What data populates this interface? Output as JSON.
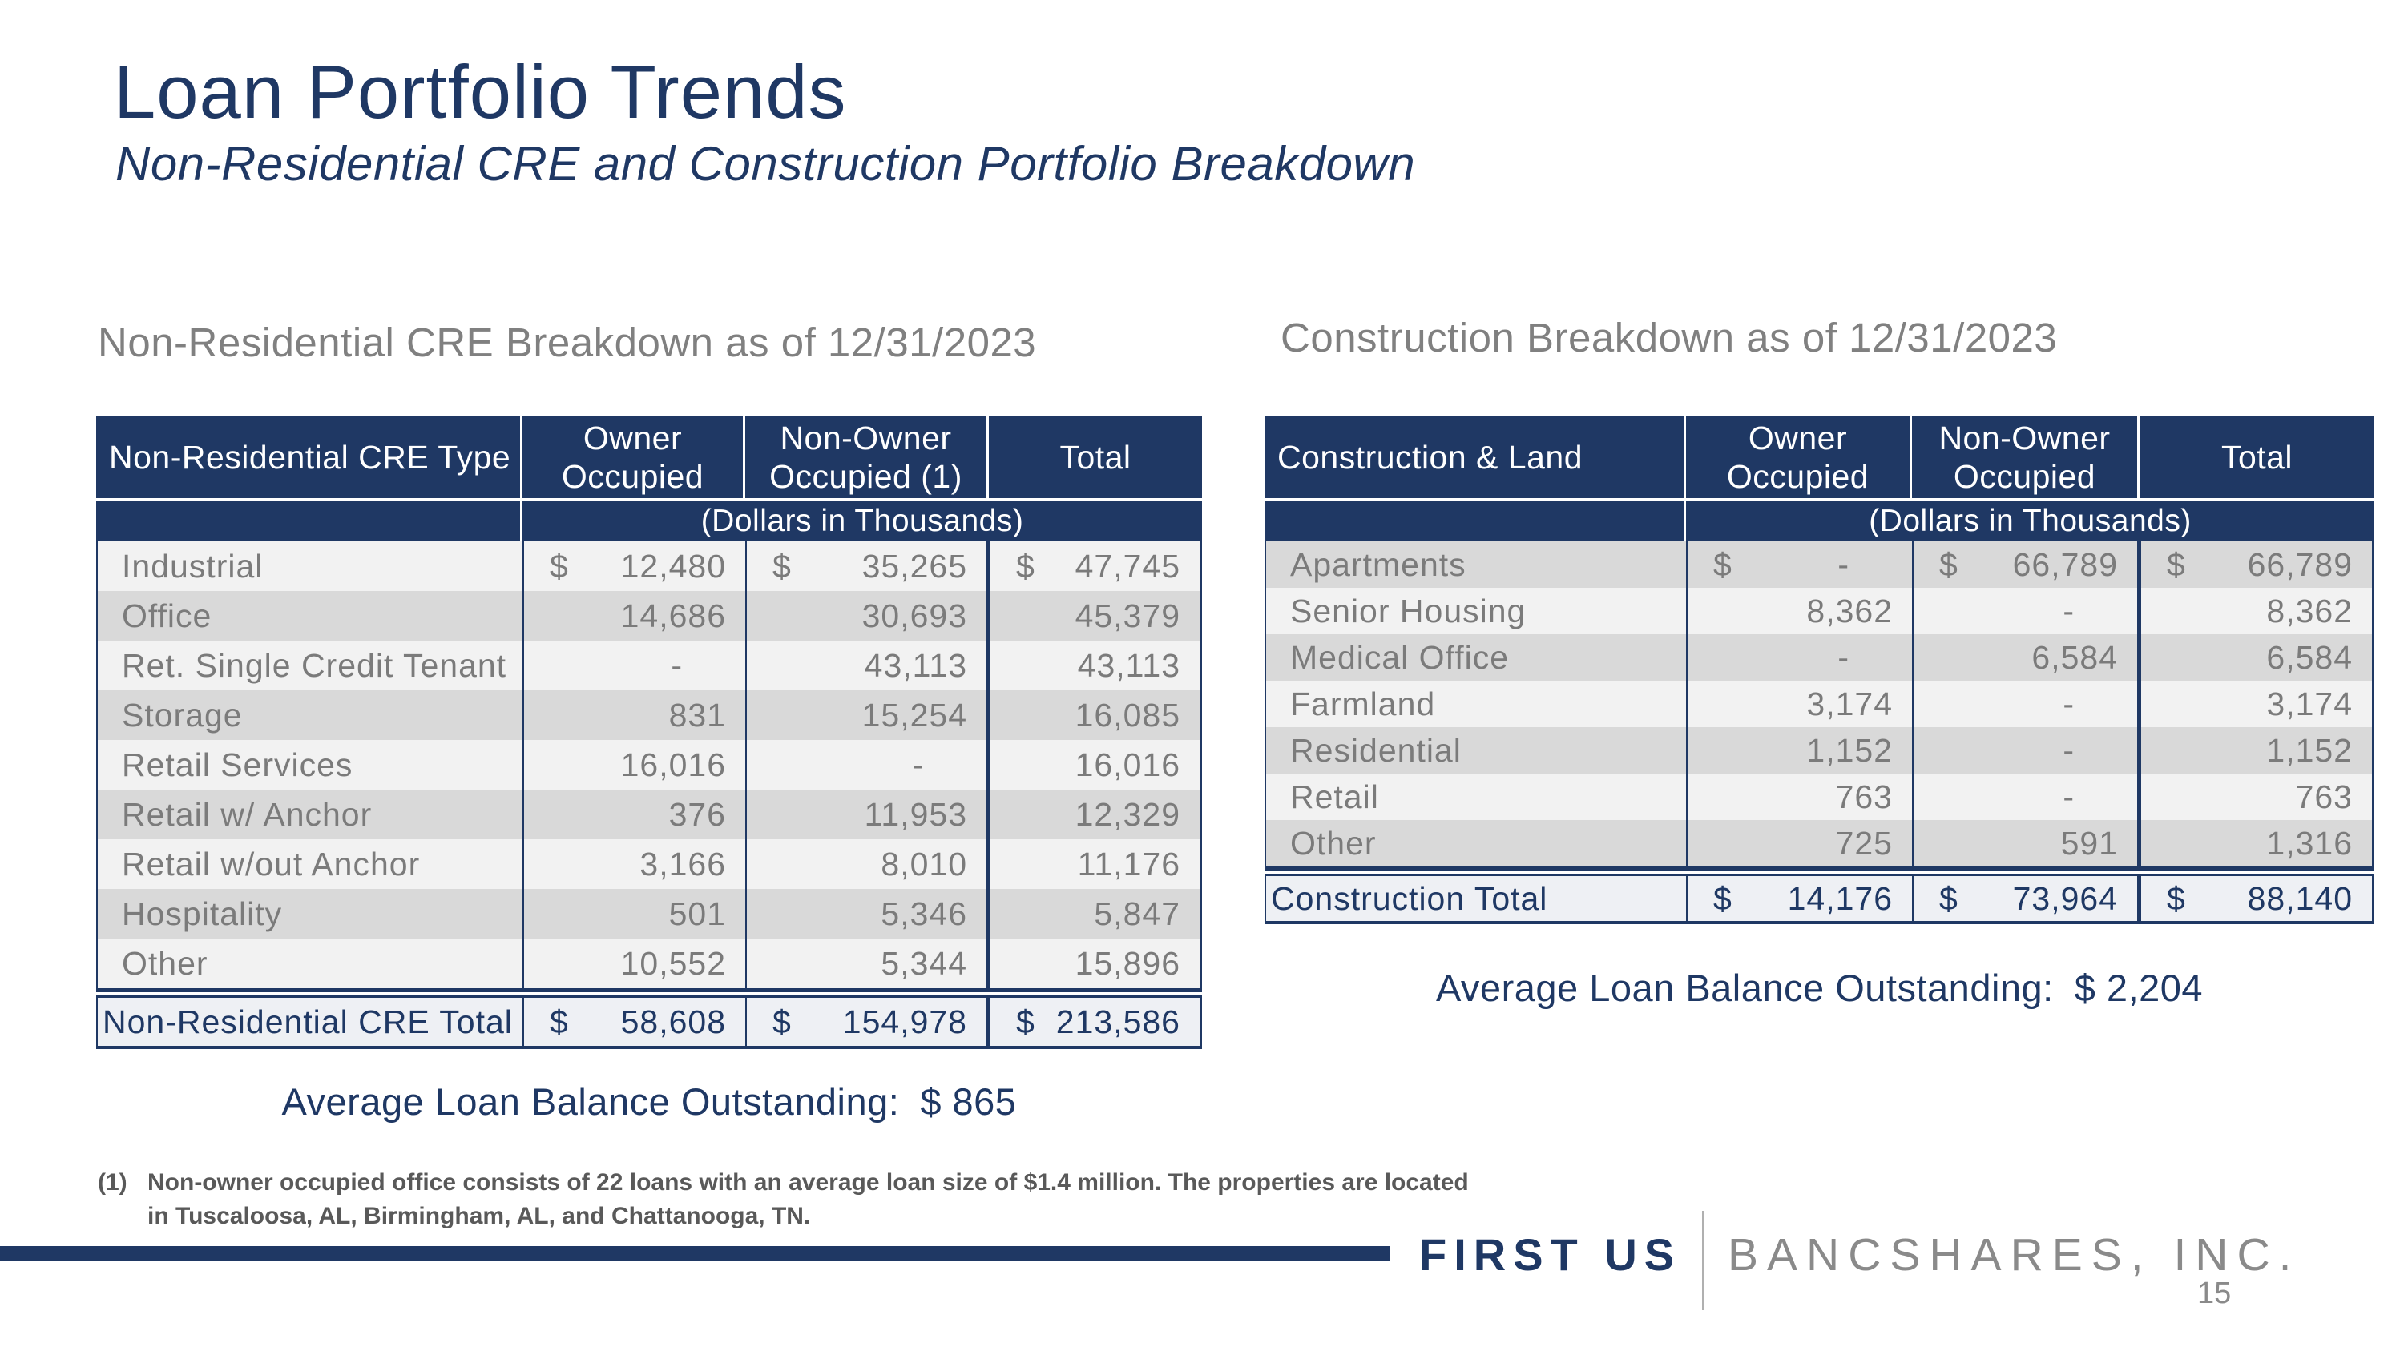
{
  "slide": {
    "title": "Loan Portfolio Trends",
    "subtitle": "Non-Residential CRE and Construction Portfolio Breakdown",
    "page_number": "15"
  },
  "colors": {
    "navy": "#1f3864",
    "row_light": "#f2f2f2",
    "row_dark": "#d9d9d9",
    "body_text": "#7b7b7b",
    "section_title_gray": "#808080",
    "footnote_gray": "#595959",
    "logo_gray": "#8a8a8a"
  },
  "left_table": {
    "section_title": "Non-Residential CRE Breakdown as of 12/31/2023",
    "columns": [
      "Non-Residential CRE Type",
      "Owner Occupied",
      "Non-Owner Occupied (1)",
      "Total"
    ],
    "units_note": "(Dollars in Thousands)",
    "rows": [
      [
        "Industrial",
        "$",
        "12,480",
        "$",
        "35,265",
        "$",
        "47,745"
      ],
      [
        "Office",
        "",
        "14,686",
        "",
        "30,693",
        "",
        "45,379"
      ],
      [
        "Ret. Single Credit Tenant",
        "",
        "-",
        "",
        "43,113",
        "",
        "43,113"
      ],
      [
        "Storage",
        "",
        "831",
        "",
        "15,254",
        "",
        "16,085"
      ],
      [
        "Retail Services",
        "",
        "16,016",
        "",
        "-",
        "",
        "16,016"
      ],
      [
        "Retail w/ Anchor",
        "",
        "376",
        "",
        "11,953",
        "",
        "12,329"
      ],
      [
        "Retail w/out Anchor",
        "",
        "3,166",
        "",
        "8,010",
        "",
        "11,176"
      ],
      [
        "Hospitality",
        "",
        "501",
        "",
        "5,346",
        "",
        "5,847"
      ],
      [
        "Other",
        "",
        "10,552",
        "",
        "5,344",
        "",
        "15,896"
      ]
    ],
    "total_row": [
      "Non-Residential CRE Total",
      "$",
      "58,608",
      "$",
      "154,978",
      "$",
      "213,586"
    ],
    "average_label": "Average Loan Balance Outstanding:",
    "average_value": "$ 865"
  },
  "right_table": {
    "section_title": "Construction Breakdown as of 12/31/2023",
    "columns": [
      "Construction & Land",
      "Owner Occupied",
      "Non-Owner Occupied",
      "Total"
    ],
    "units_note": "(Dollars in Thousands)",
    "rows": [
      [
        "Apartments",
        "$",
        "-",
        "$",
        "66,789",
        "$",
        "66,789"
      ],
      [
        "Senior Housing",
        "",
        "8,362",
        "",
        "-",
        "",
        "8,362"
      ],
      [
        "Medical Office",
        "",
        "-",
        "",
        "6,584",
        "",
        "6,584"
      ],
      [
        "Farmland",
        "",
        "3,174",
        "",
        "-",
        "",
        "3,174"
      ],
      [
        "Residential",
        "",
        "1,152",
        "",
        "-",
        "",
        "1,152"
      ],
      [
        "Retail",
        "",
        "763",
        "",
        "-",
        "",
        "763"
      ],
      [
        "Other",
        "",
        "725",
        "",
        "591",
        "",
        "1,316"
      ]
    ],
    "total_row": [
      "Construction Total",
      "$",
      "14,176",
      "$",
      "73,964",
      "$",
      "88,140"
    ],
    "average_label": "Average Loan Balance Outstanding:",
    "average_value": "$ 2,204"
  },
  "footnote": {
    "marker": "(1)",
    "line1": "Non-owner occupied office consists of 22 loans with an average loan size of $1.4 million. The properties are located",
    "line2": "in Tuscaloosa, AL, Birmingham, AL, and Chattanooga, TN."
  },
  "footer": {
    "logo_primary": "FIRST US",
    "logo_secondary": "BANCSHARES, INC."
  }
}
